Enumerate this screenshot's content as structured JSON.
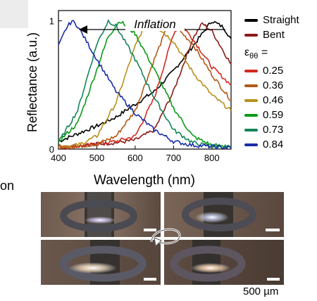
{
  "chart_data": {
    "type": "line",
    "title": "",
    "xlabel": "Wavelength (nm)",
    "ylabel": "Reflectance (a.u.)",
    "xlim": [
      400,
      850
    ],
    "ylim": [
      0,
      1.08
    ],
    "xticks": [
      "400",
      "500",
      "600",
      "700",
      "800"
    ],
    "yticks": [
      "0",
      "1"
    ],
    "annotation": "Inflation",
    "legend_title": "εθθ =",
    "legend_position": "right",
    "series": [
      {
        "name": "Straight",
        "color": "#000000",
        "peak": 805,
        "peak_value": 1.0,
        "x": [
          400,
          450,
          500,
          550,
          600,
          650,
          700,
          750,
          800,
          830,
          850
        ],
        "y": [
          0.06,
          0.12,
          0.18,
          0.25,
          0.35,
          0.45,
          0.61,
          0.8,
          1.0,
          0.95,
          0.86
        ]
      },
      {
        "name": "Bent",
        "color": "#8b1a1a",
        "peak": 775,
        "peak_value": 0.98,
        "x": [
          400,
          450,
          500,
          550,
          600,
          650,
          700,
          750,
          775,
          800,
          850
        ],
        "y": [
          0.02,
          0.03,
          0.04,
          0.05,
          0.07,
          0.15,
          0.45,
          0.86,
          0.98,
          0.92,
          0.66
        ]
      },
      {
        "name": "0.25",
        "color": "#d12a20",
        "peak": 718,
        "peak_value": 0.98,
        "x": [
          400,
          450,
          500,
          550,
          600,
          650,
          700,
          718,
          750,
          800,
          850
        ],
        "y": [
          0.01,
          0.02,
          0.04,
          0.06,
          0.1,
          0.4,
          0.9,
          0.98,
          0.86,
          0.64,
          0.5
        ]
      },
      {
        "name": "0.36",
        "color": "#b25a18",
        "peak": 690,
        "peak_value": 1.0,
        "x": [
          400,
          450,
          500,
          550,
          600,
          650,
          690,
          700,
          750,
          800,
          850
        ],
        "y": [
          0.02,
          0.02,
          0.04,
          0.1,
          0.3,
          0.7,
          1.0,
          0.97,
          0.82,
          0.58,
          0.38
        ]
      },
      {
        "name": "0.46",
        "color": "#b8901e",
        "peak": 630,
        "peak_value": 1.0,
        "x": [
          400,
          450,
          500,
          550,
          600,
          630,
          650,
          700,
          750,
          800,
          850
        ],
        "y": [
          0.02,
          0.03,
          0.1,
          0.36,
          0.8,
          1.0,
          0.97,
          0.84,
          0.6,
          0.42,
          0.3
        ]
      },
      {
        "name": "0.59",
        "color": "#0a9a18",
        "peak": 560,
        "peak_value": 1.0,
        "x": [
          400,
          450,
          500,
          530,
          560,
          600,
          650,
          700,
          750,
          800,
          850
        ],
        "y": [
          0.06,
          0.2,
          0.62,
          0.88,
          1.0,
          0.9,
          0.62,
          0.32,
          0.1,
          0.03,
          0.02
        ]
      },
      {
        "name": "0.73",
        "color": "#16845a",
        "peak": 530,
        "peak_value": 1.0,
        "x": [
          400,
          450,
          500,
          530,
          550,
          600,
          650,
          700,
          750,
          800,
          850
        ],
        "y": [
          0.05,
          0.3,
          0.82,
          1.0,
          0.96,
          0.7,
          0.4,
          0.15,
          0.05,
          0.02,
          0.02
        ]
      },
      {
        "name": "0.84",
        "color": "#1a2ea6",
        "peak": 435,
        "peak_value": 1.0,
        "x": [
          400,
          420,
          435,
          450,
          500,
          550,
          600,
          650,
          700,
          750,
          800,
          850
        ],
        "y": [
          0.8,
          0.94,
          1.0,
          0.96,
          0.7,
          0.45,
          0.28,
          0.15,
          0.06,
          0.03,
          0.02,
          0.01
        ]
      }
    ]
  },
  "page": {
    "cut_text": "on",
    "scale_label": "500 µm"
  }
}
